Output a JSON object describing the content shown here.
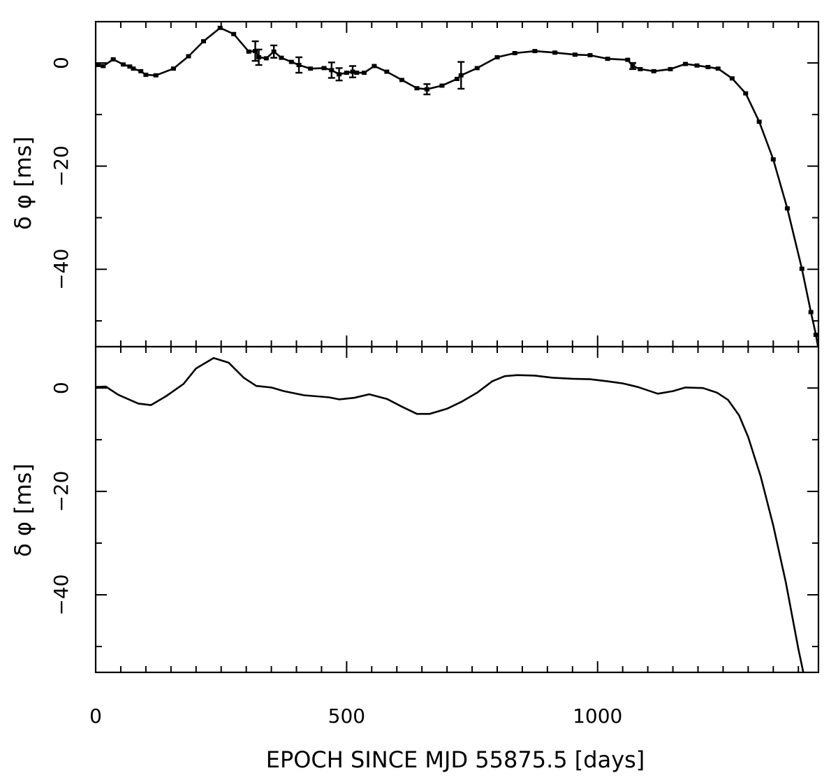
{
  "chart_data": [
    {
      "type": "line",
      "panel": "top",
      "ylabel": "δ φ [ms]",
      "xlim": [
        0,
        1440
      ],
      "ylim": [
        -55,
        8
      ],
      "x_ticks": [
        0,
        500,
        1000
      ],
      "y_ticks": [
        0,
        -20,
        -40
      ],
      "x_minor_step": 50,
      "y_minor_step": 10,
      "markers": true,
      "series": [
        {
          "points": [
            [
              5,
              -0.4
            ],
            [
              15,
              -0.6
            ],
            [
              35,
              0.7
            ],
            [
              55,
              -0.3
            ],
            [
              68,
              -0.7
            ],
            [
              75,
              -1.1
            ],
            [
              90,
              -1.6
            ],
            [
              100,
              -2.3
            ],
            [
              120,
              -2.4
            ],
            [
              155,
              -1.1
            ],
            [
              185,
              1.3
            ],
            [
              215,
              4.2
            ],
            [
              248,
              6.8
            ],
            [
              275,
              5.6
            ],
            [
              305,
              2.2
            ],
            [
              318,
              2.3
            ],
            [
              325,
              1.1
            ],
            [
              340,
              0.9
            ],
            [
              355,
              2.2
            ],
            [
              370,
              1.0
            ],
            [
              390,
              0.2
            ],
            [
              405,
              -0.4
            ],
            [
              428,
              -1.1
            ],
            [
              455,
              -1.0
            ],
            [
              470,
              -1.4
            ],
            [
              485,
              -2.2
            ],
            [
              500,
              -1.9
            ],
            [
              512,
              -1.7
            ],
            [
              520,
              -1.9
            ],
            [
              535,
              -1.9
            ],
            [
              555,
              -0.6
            ],
            [
              580,
              -1.7
            ],
            [
              610,
              -3.3
            ],
            [
              640,
              -4.9
            ],
            [
              660,
              -5.1
            ],
            [
              690,
              -4.4
            ],
            [
              720,
              -3.1
            ],
            [
              728,
              -2.4
            ],
            [
              760,
              -1.0
            ],
            [
              800,
              1.1
            ],
            [
              835,
              1.9
            ],
            [
              875,
              2.3
            ],
            [
              915,
              2.0
            ],
            [
              955,
              1.6
            ],
            [
              985,
              1.5
            ],
            [
              1020,
              0.8
            ],
            [
              1060,
              0.6
            ],
            [
              1070,
              -0.6
            ],
            [
              1085,
              -1.2
            ],
            [
              1112,
              -1.6
            ],
            [
              1145,
              -1.2
            ],
            [
              1175,
              -0.2
            ],
            [
              1198,
              -0.5
            ],
            [
              1220,
              -0.8
            ],
            [
              1240,
              -1.1
            ],
            [
              1268,
              -3.0
            ],
            [
              1295,
              -5.9
            ],
            [
              1322,
              -11.4
            ],
            [
              1350,
              -18.7
            ],
            [
              1378,
              -28.2
            ],
            [
              1407,
              -39.9
            ],
            [
              1425,
              -48.3
            ],
            [
              1435,
              -52.7
            ],
            [
              1440,
              -55.5
            ]
          ],
          "errorbars": [
            [
              318,
              1.9
            ],
            [
              325,
              1.5
            ],
            [
              355,
              1.2
            ],
            [
              405,
              1.5
            ],
            [
              470,
              1.5
            ],
            [
              485,
              1.2
            ],
            [
              512,
              1.1
            ],
            [
              660,
              1.0
            ],
            [
              728,
              2.6
            ],
            [
              1070,
              0.6
            ]
          ]
        }
      ]
    },
    {
      "type": "line",
      "panel": "bottom",
      "xlabel": "EPOCH SINCE MJD 55875.5 [days]",
      "ylabel": "δ φ [ms]",
      "xlim": [
        0,
        1440
      ],
      "ylim": [
        -55,
        8
      ],
      "x_ticks": [
        0,
        500,
        1000
      ],
      "y_ticks": [
        0,
        -20,
        -40
      ],
      "x_minor_step": 50,
      "y_minor_step": 10,
      "markers": false,
      "series": [
        {
          "points": [
            [
              0,
              0.2
            ],
            [
              20,
              0.3
            ],
            [
              45,
              -1.3
            ],
            [
              85,
              -3.0
            ],
            [
              110,
              -3.3
            ],
            [
              140,
              -1.6
            ],
            [
              175,
              0.8
            ],
            [
              200,
              3.8
            ],
            [
              235,
              5.8
            ],
            [
              265,
              4.9
            ],
            [
              295,
              2.0
            ],
            [
              320,
              0.4
            ],
            [
              350,
              0.1
            ],
            [
              375,
              -0.6
            ],
            [
              415,
              -1.4
            ],
            [
              440,
              -1.6
            ],
            [
              465,
              -1.8
            ],
            [
              485,
              -2.2
            ],
            [
              515,
              -1.9
            ],
            [
              545,
              -1.2
            ],
            [
              580,
              -2.1
            ],
            [
              610,
              -3.6
            ],
            [
              640,
              -5.0
            ],
            [
              665,
              -5.0
            ],
            [
              700,
              -4.0
            ],
            [
              730,
              -2.6
            ],
            [
              760,
              -0.9
            ],
            [
              790,
              1.3
            ],
            [
              815,
              2.3
            ],
            [
              840,
              2.5
            ],
            [
              875,
              2.4
            ],
            [
              910,
              2.0
            ],
            [
              950,
              1.8
            ],
            [
              985,
              1.7
            ],
            [
              1020,
              1.3
            ],
            [
              1050,
              0.9
            ],
            [
              1080,
              0.2
            ],
            [
              1120,
              -1.1
            ],
            [
              1150,
              -0.6
            ],
            [
              1175,
              0.1
            ],
            [
              1210,
              0.0
            ],
            [
              1238,
              -0.9
            ],
            [
              1260,
              -2.3
            ],
            [
              1282,
              -5.3
            ],
            [
              1300,
              -9.5
            ],
            [
              1325,
              -17.1
            ],
            [
              1350,
              -26.6
            ],
            [
              1375,
              -37.6
            ],
            [
              1400,
              -50.5
            ],
            [
              1412,
              -56.0
            ]
          ]
        }
      ]
    }
  ],
  "labels": {
    "top_ylabel": "δ φ [ms]",
    "bottom_ylabel": "δ φ [ms]",
    "xlabel": "EPOCH SINCE MJD 55875.5 [days]"
  }
}
